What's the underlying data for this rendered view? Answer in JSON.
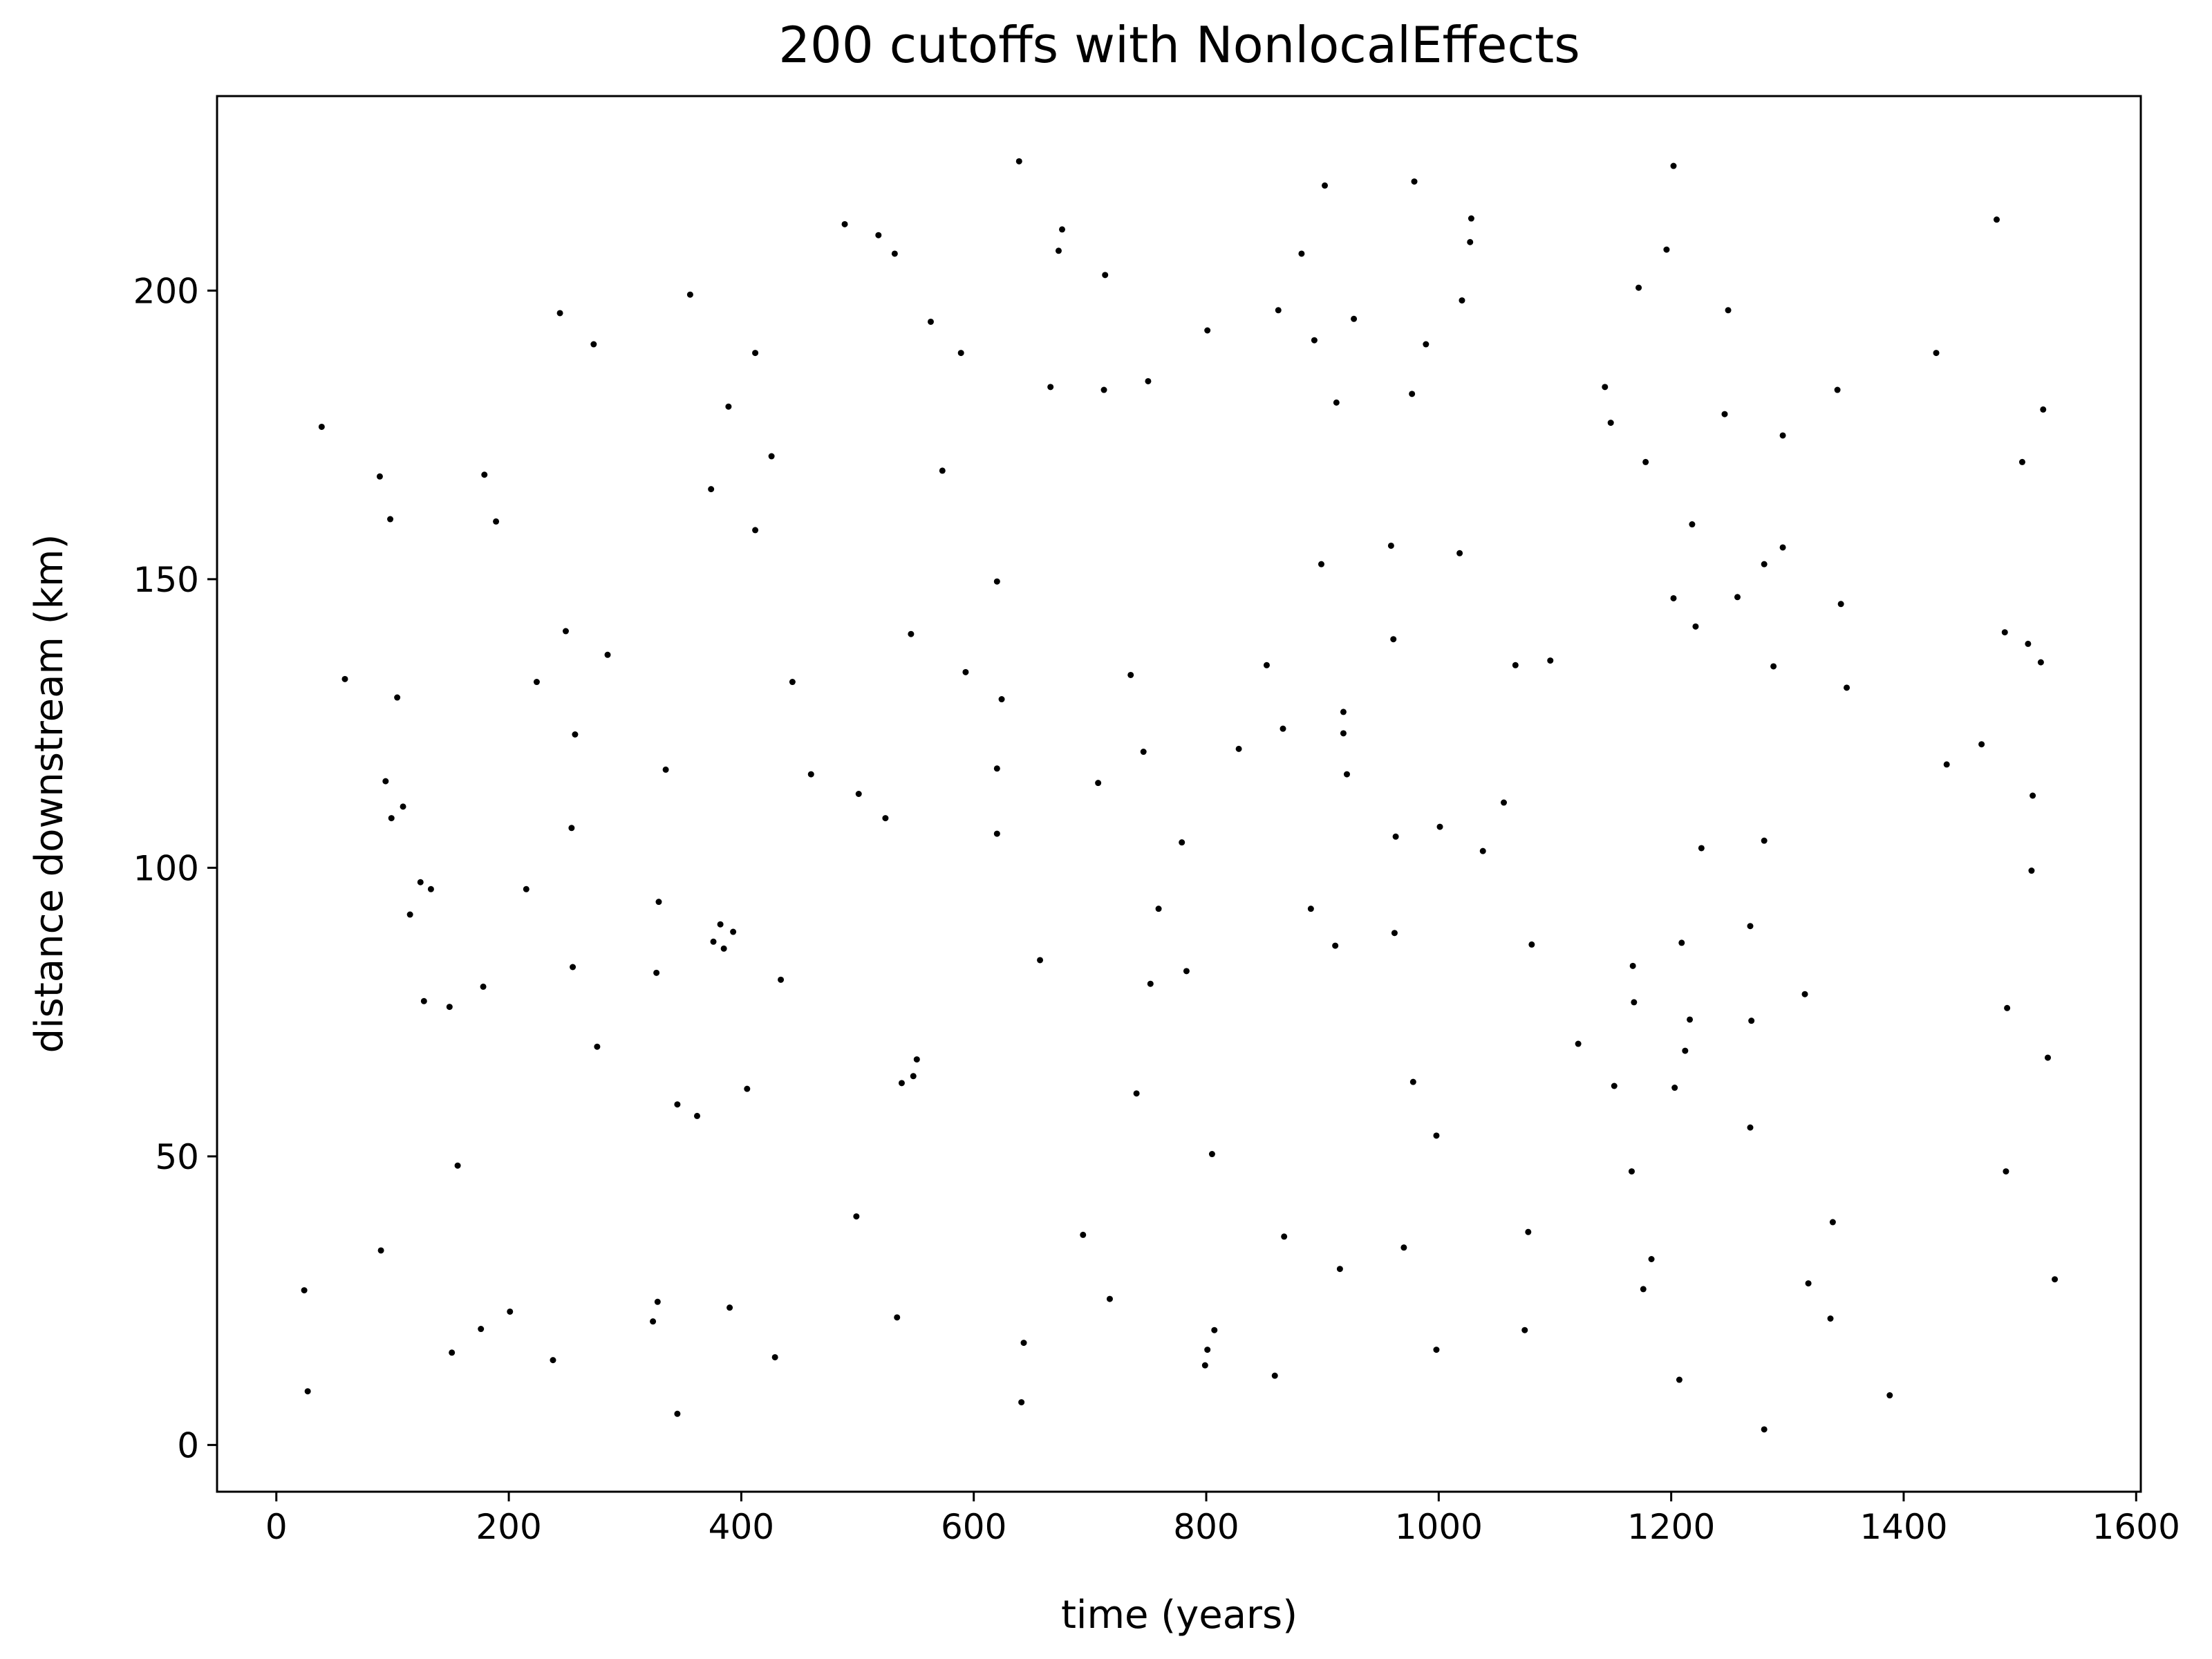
{
  "chart_data": {
    "type": "scatter",
    "title": "200 cutoffs with NonlocalEffects",
    "x_label": "time (years)",
    "y_label": "distance downstream (km)",
    "color": "#000000",
    "xlim": [
      -51,
      1604
    ],
    "ylim": [
      -8.1,
      233.7
    ],
    "xticks": [
      0,
      200,
      400,
      600,
      800,
      1000,
      1200,
      1400,
      1600
    ],
    "yticks": [
      0,
      50,
      100,
      150,
      200
    ],
    "x": [
      24,
      27,
      39,
      59,
      89,
      98,
      90,
      94,
      99,
      104,
      109,
      115,
      124,
      127,
      133,
      149,
      151,
      156,
      176,
      178,
      179,
      189,
      201,
      215,
      224,
      238,
      244,
      249,
      254,
      255,
      257,
      273,
      276,
      285,
      324,
      327,
      328,
      329,
      335,
      345,
      345,
      356,
      362,
      374,
      376,
      382,
      385,
      389,
      390,
      393,
      405,
      412,
      412,
      426,
      429,
      434,
      444,
      460,
      489,
      499,
      501,
      518,
      524,
      532,
      534,
      538,
      546,
      548,
      551,
      563,
      573,
      589,
      593,
      620,
      620,
      620,
      624,
      657,
      639,
      641,
      643,
      666,
      673,
      676,
      694,
      707,
      713,
      712,
      717,
      735,
      740,
      746,
      750,
      752,
      759,
      779,
      783,
      799,
      801,
      801,
      805,
      807,
      828,
      852,
      859,
      862,
      866,
      867,
      882,
      890,
      893,
      899,
      902,
      911,
      912,
      918,
      918,
      921,
      927,
      915,
      959,
      961,
      962,
      963,
      970,
      979,
      977,
      978,
      989,
      998,
      998,
      1001,
      1020,
      1018,
      1027,
      1028,
      1038,
      1056,
      1066,
      1074,
      1077,
      1080,
      1096,
      1120,
      1151,
      1143,
      1148,
      1166,
      1167,
      1168,
      1172,
      1178,
      1176,
      1183,
      1196,
      1202,
      1202,
      1203,
      1207,
      1209,
      1212,
      1216,
      1218,
      1221,
      1226,
      1246,
      1249,
      1257,
      1268,
      1269,
      1268,
      1280,
      1280,
      1280,
      1288,
      1296,
      1296,
      1315,
      1318,
      1337,
      1339,
      1343,
      1346,
      1351,
      1388,
      1428,
      1437,
      1487,
      1489,
      1488,
      1467,
      1480,
      1502,
      1507,
      1510,
      1511,
      1518,
      1520,
      1524,
      1530
    ],
    "values": [
      26.8,
      9.3,
      176.4,
      132.7,
      167.8,
      160.4,
      33.7,
      115.0,
      108.6,
      129.5,
      110.6,
      91.9,
      97.5,
      76.9,
      96.3,
      75.9,
      16.0,
      48.4,
      20.1,
      79.4,
      168.1,
      160.0,
      23.1,
      96.3,
      132.2,
      14.7,
      196.1,
      141.0,
      106.9,
      82.8,
      123.1,
      190.7,
      69.0,
      136.9,
      21.4,
      81.8,
      24.8,
      94.1,
      117.0,
      5.4,
      59.0,
      199.3,
      57.0,
      165.6,
      87.2,
      90.2,
      86.0,
      179.9,
      23.8,
      88.9,
      61.7,
      189.2,
      158.5,
      171.3,
      15.2,
      80.6,
      132.2,
      116.2,
      211.5,
      39.6,
      112.8,
      209.6,
      108.6,
      206.4,
      22.1,
      62.7,
      140.5,
      63.9,
      66.8,
      194.6,
      168.8,
      189.2,
      133.9,
      149.6,
      117.2,
      105.9,
      129.2,
      84.0,
      222.4,
      7.4,
      17.7,
      183.3,
      206.9,
      210.6,
      36.4,
      114.7,
      202.7,
      182.8,
      25.3,
      133.4,
      60.9,
      120.1,
      184.3,
      79.9,
      92.9,
      104.4,
      82.1,
      13.8,
      193.1,
      16.5,
      50.4,
      19.9,
      120.6,
      135.1,
      12.0,
      196.6,
      124.1,
      36.1,
      206.4,
      92.9,
      191.4,
      152.6,
      218.2,
      86.5,
      180.6,
      127.0,
      123.3,
      116.2,
      195.1,
      30.5,
      155.8,
      139.6,
      88.7,
      105.4,
      34.2,
      218.9,
      182.1,
      62.9,
      190.7,
      53.6,
      16.5,
      107.1,
      198.3,
      154.5,
      208.4,
      212.5,
      102.9,
      111.3,
      135.1,
      19.9,
      36.9,
      86.7,
      135.9,
      69.5,
      62.2,
      183.3,
      177.1,
      47.4,
      83.0,
      76.7,
      200.5,
      170.3,
      27.0,
      32.2,
      207.1,
      146.7,
      221.6,
      61.9,
      11.3,
      87.0,
      68.3,
      73.7,
      159.5,
      141.8,
      103.4,
      178.6,
      196.6,
      146.9,
      89.9,
      73.5,
      55.0,
      2.7,
      152.6,
      104.7,
      134.9,
      155.5,
      174.9,
      78.1,
      28.0,
      21.9,
      38.6,
      182.8,
      145.7,
      131.2,
      8.6,
      189.2,
      117.9,
      140.8,
      75.7,
      47.4,
      121.4,
      212.3,
      170.3,
      138.8,
      99.5,
      112.5,
      135.6,
      179.4,
      67.1,
      28.7
    ]
  }
}
